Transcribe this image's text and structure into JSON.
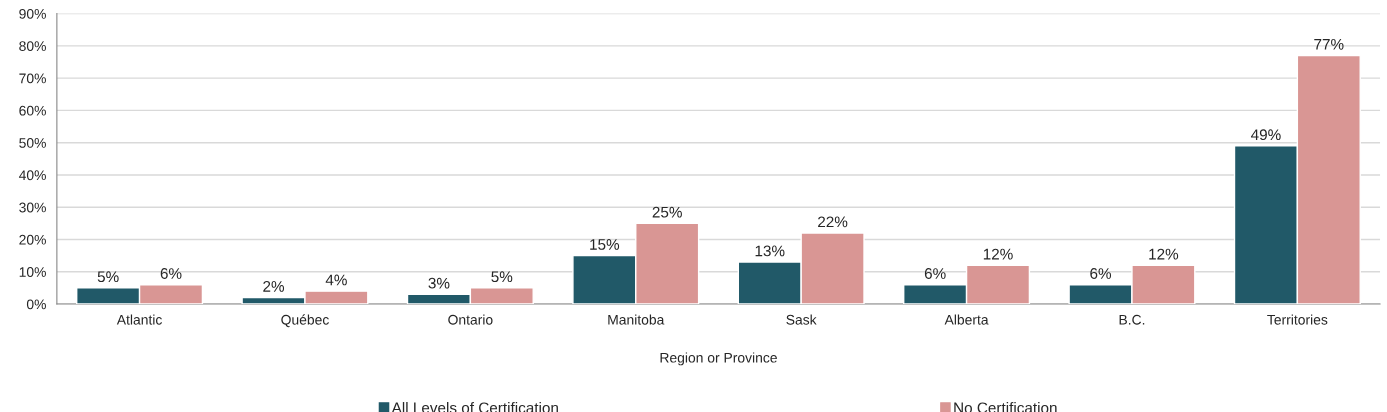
{
  "chart_data": {
    "type": "bar",
    "xlabel": "Region or Province",
    "categories": [
      "Atlantic",
      "Québec",
      "Ontario",
      "Manitoba",
      "Sask",
      "Alberta",
      "B.C.",
      "Territories"
    ],
    "series": [
      {
        "name": "All Levels of Certification",
        "color": "#215968",
        "values": [
          5,
          2,
          3,
          15,
          13,
          6,
          6,
          49
        ],
        "value_labels": [
          "5%",
          "2%",
          "3%",
          "15%",
          "13%",
          "6%",
          "6%",
          "49%"
        ]
      },
      {
        "name": "No Certification",
        "color": "#d99694",
        "values": [
          6,
          4,
          5,
          25,
          22,
          12,
          12,
          77
        ],
        "value_labels": [
          "6%",
          "4%",
          "5%",
          "25%",
          "22%",
          "12%",
          "12%",
          "77%"
        ]
      }
    ],
    "ylim": [
      0,
      90
    ],
    "yticks": [
      {
        "value": 0,
        "label": "0%"
      },
      {
        "value": 10,
        "label": "10%"
      },
      {
        "value": 20,
        "label": "20%"
      },
      {
        "value": 30,
        "label": "30%"
      },
      {
        "value": 40,
        "label": "40%"
      },
      {
        "value": 50,
        "label": "50%"
      },
      {
        "value": 60,
        "label": "60%"
      },
      {
        "value": 70,
        "label": "70%"
      },
      {
        "value": 80,
        "label": "80%"
      },
      {
        "value": 90,
        "label": "90%"
      }
    ],
    "grid": "y",
    "legend": "bottom"
  }
}
